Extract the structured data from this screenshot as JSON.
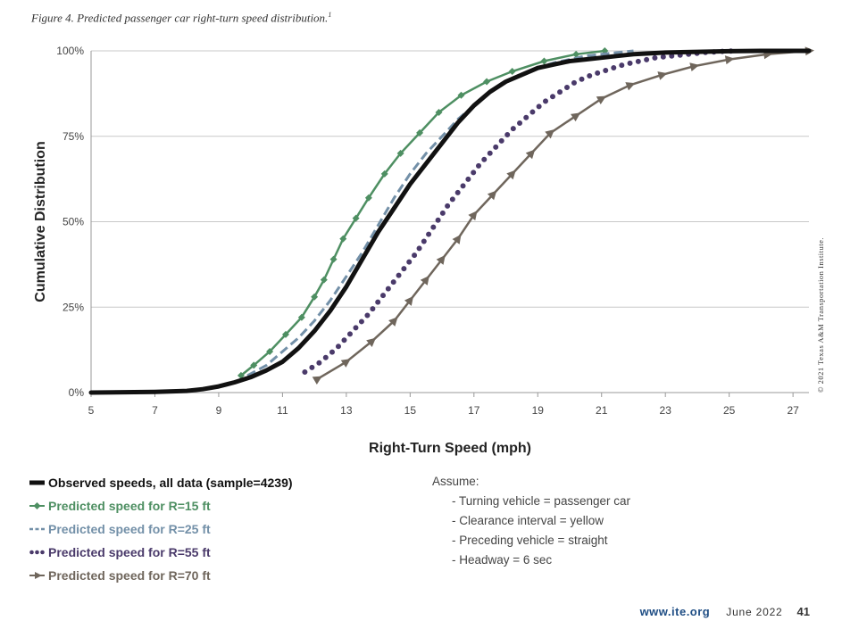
{
  "caption": "Figure 4. Predicted passenger car right-turn speed distribution.",
  "caption_ref": "1",
  "copyright": "© 2021 Texas A&M Transportation Institute.",
  "assume": {
    "title": "Assume:",
    "items": [
      "- Turning vehicle = passenger car",
      "- Clearance interval = yellow",
      "- Preceding vehicle = straight",
      "- Headway = 6 sec"
    ]
  },
  "footer": {
    "website": "www.ite.org",
    "date": "June 2022",
    "page": "41"
  },
  "chart_data": {
    "type": "line",
    "title": "",
    "xlabel": "Right-Turn Speed (mph)",
    "ylabel": "Cumulative Distribution",
    "xlim": [
      5,
      27.5
    ],
    "ylim": [
      0,
      100
    ],
    "x_ticks": [
      "5",
      "7",
      "9",
      "11",
      "13",
      "15",
      "17",
      "19",
      "21",
      "23",
      "25",
      "27"
    ],
    "y_ticks": [
      "0%",
      "25%",
      "50%",
      "75%",
      "100%"
    ],
    "grid": "horizontal",
    "series": [
      {
        "name": "Observed speeds, all data (sample=4239)",
        "style": "solid-thick",
        "color": "#111111",
        "x": [
          5,
          7,
          8,
          8.5,
          9,
          9.5,
          10,
          10.5,
          11,
          11.5,
          12,
          12.5,
          13,
          13.5,
          14,
          14.5,
          15,
          15.5,
          16,
          16.5,
          17,
          17.5,
          18,
          18.5,
          19,
          19.5,
          20,
          20.5,
          21,
          21.5,
          22,
          23,
          24,
          25,
          26,
          27,
          27.5
        ],
        "y": [
          0,
          0.2,
          0.5,
          1,
          1.8,
          3,
          4.5,
          6.5,
          9,
          13,
          18,
          24,
          31,
          39,
          47,
          54,
          61,
          67,
          73,
          79,
          84,
          88,
          91,
          93,
          95,
          96,
          97,
          97.5,
          98,
          98.5,
          99,
          99.5,
          99.7,
          99.9,
          100,
          100,
          100
        ]
      },
      {
        "name": "Predicted speed for R=15 ft",
        "style": "diamond",
        "color": "#4e8f62",
        "x": [
          9.7,
          10.1,
          10.6,
          11.1,
          11.6,
          12.0,
          12.3,
          12.6,
          12.9,
          13.3,
          13.7,
          14.2,
          14.7,
          15.3,
          15.9,
          16.6,
          17.4,
          18.2,
          19.2,
          20.2,
          21.1
        ],
        "y": [
          5,
          8,
          12,
          17,
          22,
          28,
          33,
          39,
          45,
          51,
          57,
          64,
          70,
          76,
          82,
          87,
          91,
          94,
          97,
          99,
          100
        ]
      },
      {
        "name": "Predicted speed for R=25 ft",
        "style": "dashed",
        "color": "#7390a8",
        "x": [
          9.9,
          10.5,
          11.0,
          11.5,
          12.0,
          12.5,
          13.0,
          13.5,
          14.0,
          14.5,
          15.0,
          15.5,
          16.0,
          16.5,
          17.0,
          17.5,
          18.0,
          18.5,
          19.0,
          19.5,
          20.0,
          20.5,
          21.0,
          21.5,
          22.0
        ],
        "y": [
          5,
          8,
          12,
          16,
          21,
          27,
          34,
          41,
          49,
          57,
          64,
          70,
          75,
          80,
          84,
          88,
          91,
          93,
          95,
          96.5,
          97.5,
          98.5,
          99,
          99.5,
          100
        ]
      },
      {
        "name": "Predicted speed for R=55 ft",
        "style": "dotted",
        "color": "#4a3a6a",
        "x": [
          11.7,
          12.2,
          12.7,
          13.2,
          13.7,
          14.2,
          14.7,
          15.2,
          15.7,
          16.2,
          16.7,
          17.2,
          17.7,
          18.2,
          18.7,
          19.2,
          19.7,
          20.2,
          20.7,
          21.2,
          21.7,
          22.2,
          22.7,
          23.2,
          23.7,
          24.2,
          24.7,
          25.2
        ],
        "y": [
          6,
          9,
          13,
          18,
          23,
          29,
          35,
          41,
          48,
          55,
          61,
          67,
          72,
          77,
          81,
          85,
          88,
          91,
          93,
          94.5,
          96,
          97,
          98,
          98.5,
          99,
          99.5,
          99.8,
          100
        ]
      },
      {
        "name": "Predicted speed for R=70 ft",
        "style": "triangle",
        "color": "#6f665c",
        "x": [
          12.1,
          13.0,
          13.8,
          14.5,
          15.0,
          15.5,
          16.0,
          16.5,
          17.0,
          17.6,
          18.2,
          18.8,
          19.4,
          20.2,
          21.0,
          21.9,
          22.9,
          23.9,
          25.0,
          26.2,
          27.5
        ],
        "y": [
          4,
          9,
          15,
          21,
          27,
          33,
          39,
          45,
          52,
          58,
          64,
          70,
          76,
          81,
          86,
          90,
          93,
          95.5,
          97.5,
          99,
          100
        ]
      }
    ]
  }
}
